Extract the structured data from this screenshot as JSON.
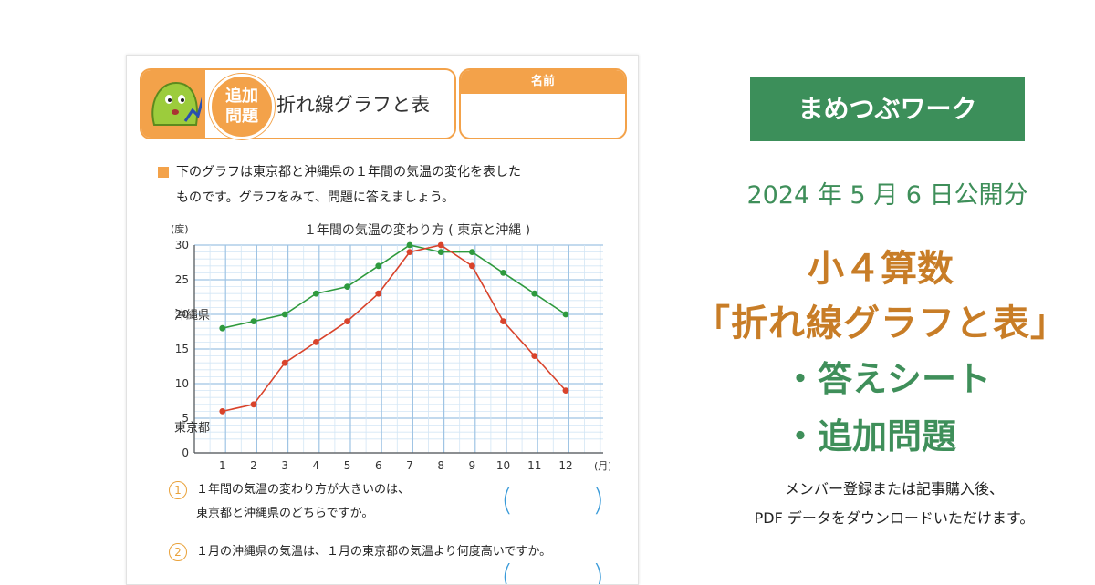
{
  "worksheet": {
    "badge_line1": "追加",
    "badge_line2": "問題",
    "title": "折れ線グラフと表",
    "name_label": "名前",
    "instruction_line1": "下のグラフは東京都と沖縄県の１年間の気温の変化を表した",
    "instruction_line2": "ものです。グラフをみて、問題に答えましょう。",
    "questions": [
      {
        "number": "1",
        "line1": "１年間の気温の変わり方が大きいのは、",
        "line2": "東京都と沖縄県のどちらですか。"
      },
      {
        "number": "2",
        "line1": "１月の沖縄県の気温は、１月の東京都の気温より何度高いですか。"
      }
    ],
    "answer_paren_open": "(",
    "answer_paren_close": ")"
  },
  "chart_data": {
    "type": "line",
    "title": "１年間の気温の変わり方 ( 東京と沖縄 )",
    "ylabel": "(度)",
    "xlabel": "(月)",
    "x": [
      1,
      2,
      3,
      4,
      5,
      6,
      7,
      8,
      9,
      10,
      11,
      12
    ],
    "ylim": [
      0,
      30
    ],
    "yticks": [
      0,
      5,
      10,
      15,
      20,
      25,
      30
    ],
    "grid": true,
    "series": [
      {
        "name": "沖縄県",
        "color": "#2e9a3e",
        "values": [
          18,
          19,
          20,
          23,
          24,
          27,
          30,
          29,
          29,
          26,
          23,
          20
        ]
      },
      {
        "name": "東京都",
        "color": "#d9432b",
        "values": [
          6,
          7,
          13,
          16,
          19,
          23,
          29,
          30,
          27,
          19,
          14,
          9
        ]
      }
    ]
  },
  "panel": {
    "brand": "まめつぶワーク",
    "pub_date": "2024 年 5 月 6 日公開分",
    "big_line1": "小４算数",
    "big_line2": "「折れ線グラフと表」",
    "bullet1": "・答えシート",
    "bullet2": "・追加問題",
    "note_line1": "メンバー登録または記事購入後、",
    "note_line2": "PDF データをダウンロードいただけます。"
  },
  "colors": {
    "accent_orange": "#f3a24a",
    "brand_green": "#3c8f5a",
    "title_orange": "#c87d27"
  }
}
